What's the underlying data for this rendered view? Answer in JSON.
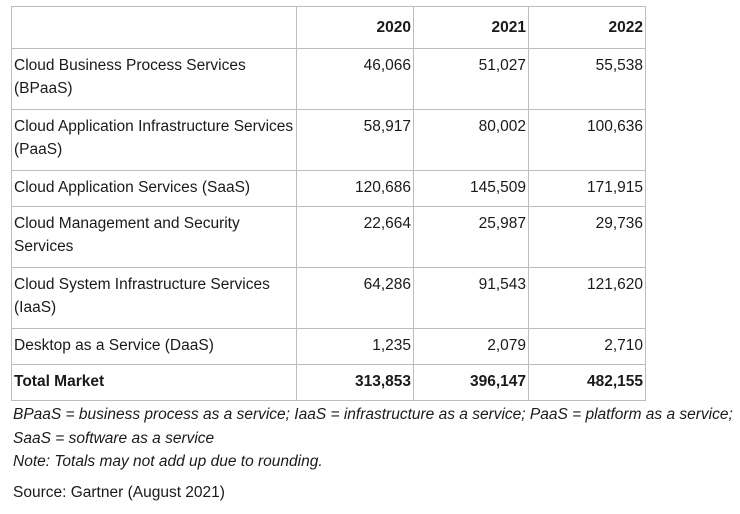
{
  "table": {
    "header": {
      "label": "",
      "years": [
        "2020",
        "2021",
        "2022"
      ]
    },
    "rows": [
      {
        "label": "Cloud Business Process Services (BPaaS)",
        "values": [
          "46,066",
          "51,027",
          "55,538"
        ]
      },
      {
        "label": "Cloud Application Infrastructure Services (PaaS)",
        "values": [
          "58,917",
          "80,002",
          "100,636"
        ]
      },
      {
        "label": "Cloud Application Services (SaaS)",
        "values": [
          "120,686",
          "145,509",
          "171,915"
        ]
      },
      {
        "label": "Cloud Management and Security Services",
        "values": [
          "22,664",
          "25,987",
          "29,736"
        ]
      },
      {
        "label": "Cloud System Infrastructure Services (IaaS)",
        "values": [
          "64,286",
          "91,543",
          "121,620"
        ]
      },
      {
        "label": "Desktop as a Service (DaaS)",
        "values": [
          "1,235",
          "2,079",
          "2,710"
        ]
      }
    ],
    "total": {
      "label": "Total Market",
      "values": [
        "313,853",
        "396,147",
        "482,155"
      ]
    }
  },
  "footnotes": {
    "definitions": "BPaaS = business process as a service; IaaS = infrastructure as a service; PaaS = platform as a service; SaaS = software as a service",
    "note": "Note: Totals may not add up due to rounding."
  },
  "source": "Source: Gartner (August 2021)"
}
